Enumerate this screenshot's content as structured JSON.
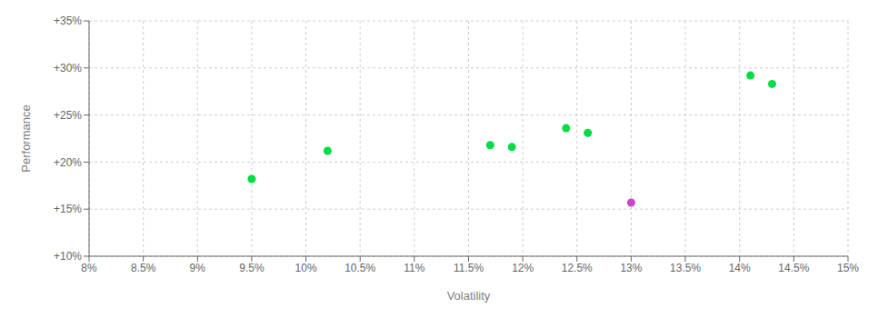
{
  "chart_data": {
    "type": "scatter",
    "xlabel": "Volatility",
    "ylabel": "Performance",
    "xlim": [
      0.08,
      0.15
    ],
    "ylim": [
      0.1,
      0.35
    ],
    "xticks": [
      {
        "value": 0.08,
        "label": "8%"
      },
      {
        "value": 0.085,
        "label": "8.5%"
      },
      {
        "value": 0.09,
        "label": "9%"
      },
      {
        "value": 0.095,
        "label": "9.5%"
      },
      {
        "value": 0.1,
        "label": "10%"
      },
      {
        "value": 0.105,
        "label": "10.5%"
      },
      {
        "value": 0.11,
        "label": "11%"
      },
      {
        "value": 0.115,
        "label": "11.5%"
      },
      {
        "value": 0.12,
        "label": "12%"
      },
      {
        "value": 0.125,
        "label": "12.5%"
      },
      {
        "value": 0.13,
        "label": "13%"
      },
      {
        "value": 0.135,
        "label": "13.5%"
      },
      {
        "value": 0.14,
        "label": "14%"
      },
      {
        "value": 0.145,
        "label": "14.5%"
      },
      {
        "value": 0.15,
        "label": "15%"
      }
    ],
    "yticks": [
      {
        "value": 0.1,
        "label": "+10%"
      },
      {
        "value": 0.15,
        "label": "+15%"
      },
      {
        "value": 0.2,
        "label": "+20%"
      },
      {
        "value": 0.25,
        "label": "+25%"
      },
      {
        "value": 0.3,
        "label": "+30%"
      },
      {
        "value": 0.35,
        "label": "+35%"
      }
    ],
    "grid": true,
    "series": [
      {
        "color": "#00dd44",
        "x": [
          0.095,
          0.102,
          0.117,
          0.119,
          0.124,
          0.126,
          0.141,
          0.143
        ],
        "values": [
          0.182,
          0.212,
          0.218,
          0.216,
          0.236,
          0.231,
          0.292,
          0.283
        ]
      },
      {
        "color": "#cc44cc",
        "x": [
          0.13
        ],
        "values": [
          0.157
        ]
      }
    ]
  }
}
